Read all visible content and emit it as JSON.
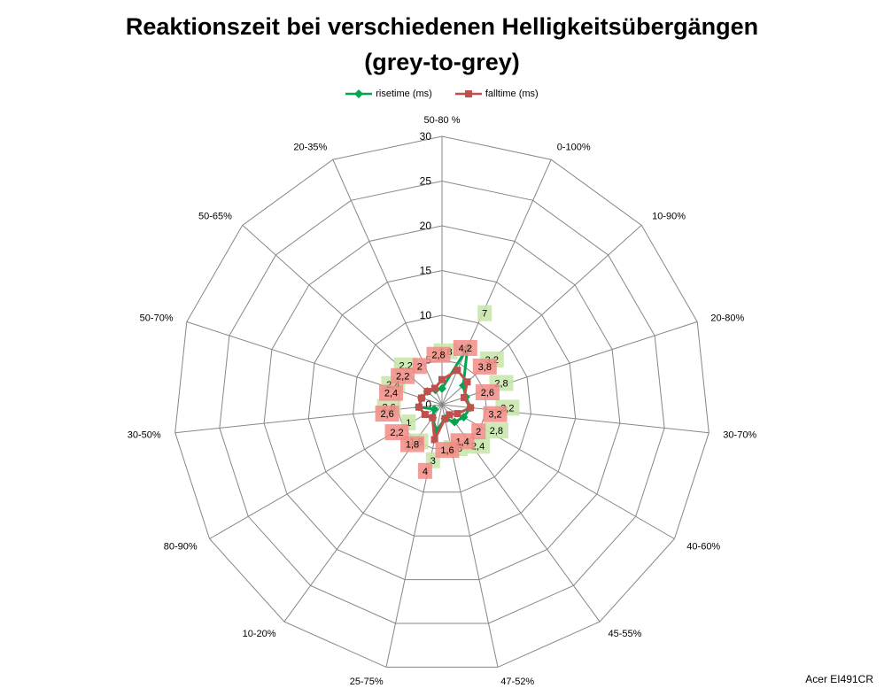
{
  "chart_data": {
    "type": "radar",
    "title_line1": "Reaktionszeit bei verschiedenen Helligkeitsübergängen",
    "title_line2": "(grey-to-grey)",
    "categories": [
      "50-80 %",
      "0-100%",
      "10-90%",
      "20-80%",
      "30-70%",
      "40-60%",
      "45-55%",
      "47-52%",
      "25-75%",
      "10-20%",
      "80-90%",
      "30-50%",
      "50-70%",
      "50-65%",
      "20-35%"
    ],
    "radial_ticks": [
      "0",
      "5",
      "10",
      "15",
      "20",
      "25",
      "30"
    ],
    "r_range": [
      0,
      30
    ],
    "legend_position": "top",
    "series": [
      {
        "name": "risetime (ms)",
        "color": "#00a64f",
        "label_bg": "#c6e5a9",
        "values": [
          1.8,
          7,
          3.2,
          2.8,
          3.2,
          2.8,
          2.4,
          1.6,
          3,
          1.8,
          1,
          2.6,
          2.4,
          2.2,
          1.8
        ],
        "labels": [
          "1,8",
          "7",
          "3,2",
          "2,8",
          "3,2",
          "2,8",
          "2,4",
          "1,6",
          "3",
          "1,8",
          "1",
          "2,6",
          "2,4",
          "2,2",
          ""
        ]
      },
      {
        "name": "falltime (ms)",
        "color": "#c0504d",
        "label_bg": "#f28b86",
        "values": [
          2.8,
          4.2,
          3.8,
          2.6,
          3.2,
          2,
          1.4,
          1.6,
          4,
          1.8,
          2.2,
          2.6,
          2.4,
          2.2,
          2
        ],
        "labels": [
          "2,8",
          "4,2",
          "3,8",
          "2,6",
          "3,2",
          "2",
          "1,4",
          "1,6",
          "4",
          "1,8",
          "2,2",
          "2,6",
          "2,4",
          "2,2",
          "2"
        ]
      }
    ]
  },
  "footer": {
    "monitor": "Acer EI491CR"
  }
}
